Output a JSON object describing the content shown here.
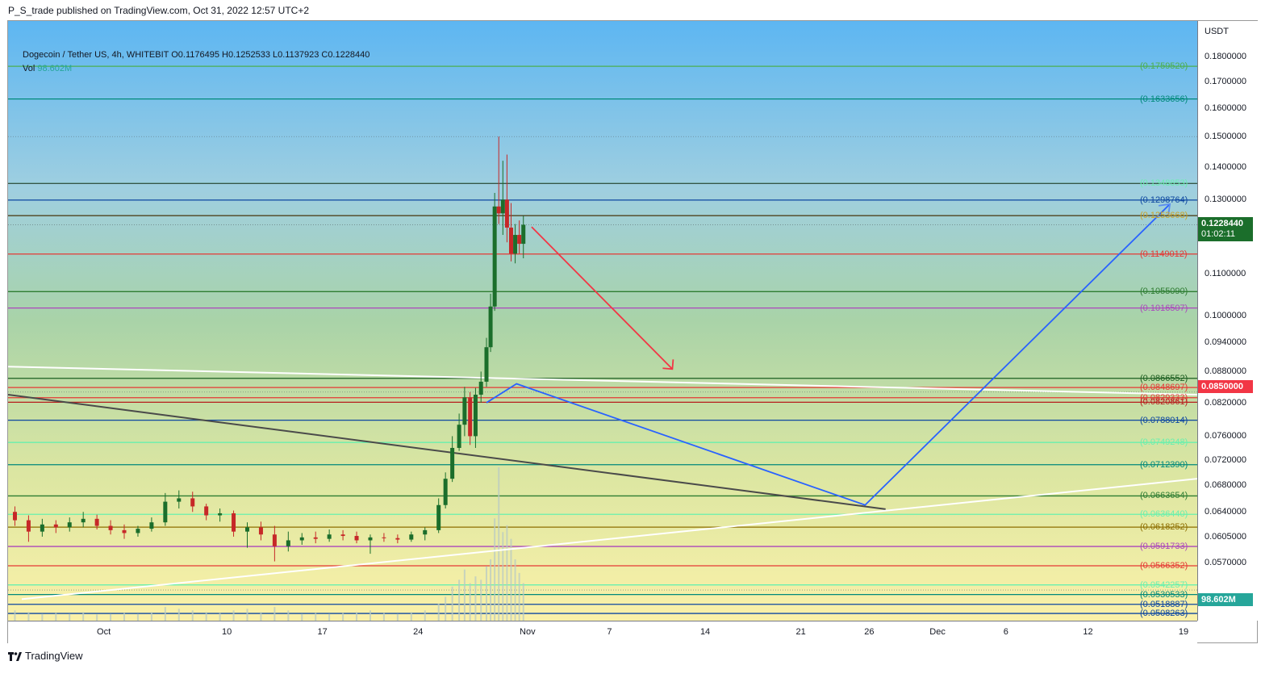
{
  "header": {
    "published": "P_S_trade published on TradingView.com, Oct 31, 2022 12:57 UTC+2"
  },
  "legend": {
    "symbol_line": "Dogecoin / Tether US, 4h, WHITEBIT  O0.1176495  H0.1252533  L0.1137923  C0.1228440",
    "vol_label": "Vol",
    "vol_value": "98.602M"
  },
  "footer": {
    "brand": "TradingView"
  },
  "axis": {
    "unit": "USDT"
  },
  "colors": {
    "up": "#1b6e2b",
    "down": "#c62828",
    "volume": "#b8c9c4",
    "blue_path": "#2962ff",
    "red_arrow": "#f23645"
  },
  "chart_data": {
    "type": "candlestick",
    "title": "Dogecoin / Tether US, 4h, WHITEBIT",
    "y_scale": "log",
    "ylim": [
      0.05,
      0.195
    ],
    "x_range_days": [
      -7,
      80
    ],
    "x_origin": "2022-10-01",
    "y_ticks": [
      "0.1800000",
      "0.1700000",
      "0.1600000",
      "0.1500000",
      "0.1400000",
      "0.1300000",
      "0.1100000",
      "0.1000000",
      "0.0940000",
      "0.0880000",
      "0.0820000",
      "0.0760000",
      "0.0720000",
      "0.0680000",
      "0.0640000",
      "0.0605000",
      "0.0570000"
    ],
    "x_ticks": [
      {
        "label": "Oct",
        "day": 0
      },
      {
        "label": "10",
        "day": 9
      },
      {
        "label": "17",
        "day": 16
      },
      {
        "label": "24",
        "day": 23
      },
      {
        "label": "Nov",
        "day": 31
      },
      {
        "label": "7",
        "day": 37
      },
      {
        "label": "14",
        "day": 44
      },
      {
        "label": "21",
        "day": 51
      },
      {
        "label": "26",
        "day": 56
      },
      {
        "label": "Dec",
        "day": 61
      },
      {
        "label": "6",
        "day": 66
      },
      {
        "label": "12",
        "day": 72
      },
      {
        "label": "19",
        "day": 79
      }
    ],
    "levels": [
      {
        "value": 0.175952,
        "label": "(0.1759520)",
        "color": "#4caf50"
      },
      {
        "value": 0.1633656,
        "label": "(0.1633656)",
        "color": "#00897b"
      },
      {
        "value": 0.1348853,
        "label": "(0.1348853)",
        "color": "#69f0ae"
      },
      {
        "value": 0.1298764,
        "label": "(0.1298764)",
        "color": "#0d47a1"
      },
      {
        "value": 0.1253668,
        "label": "(0.1253668)",
        "color": "#c9a227"
      },
      {
        "value": 0.1149012,
        "label": "(0.1149012)",
        "color": "#e53935"
      },
      {
        "value": 0.105509,
        "label": "(0.1055090)",
        "color": "#2e7d32"
      },
      {
        "value": 0.1016507,
        "label": "(0.1016507)",
        "color": "#ab47bc"
      },
      {
        "value": 0.0866552,
        "label": "(0.0866552)",
        "color": "#1b5e20"
      },
      {
        "value": 0.0848697,
        "label": "(0.0848697)",
        "color": "#e53935"
      },
      {
        "value": 0.0829333,
        "label": "(0.0829333)",
        "color": "#e53935"
      },
      {
        "value": 0.0820861,
        "label": "(0.0820861)",
        "color": "#b71c1c"
      },
      {
        "value": 0.0788014,
        "label": "(0.0788014)",
        "color": "#0d47a1"
      },
      {
        "value": 0.0749248,
        "label": "(0.0749248)",
        "color": "#69f0ae"
      },
      {
        "value": 0.071239,
        "label": "(0.0712390)",
        "color": "#00897b"
      },
      {
        "value": 0.0663654,
        "label": "(0.0663654)",
        "color": "#2e7d32"
      },
      {
        "value": 0.063644,
        "label": "(0.0636440)",
        "color": "#69f0ae"
      },
      {
        "value": 0.0618252,
        "label": "(0.0618252)",
        "color": "#8d6e00"
      },
      {
        "value": 0.0591733,
        "label": "(0.0591733)",
        "color": "#ab47bc"
      },
      {
        "value": 0.0566352,
        "label": "(0.0566352)",
        "color": "#e53935"
      },
      {
        "value": 0.0542257,
        "label": "(0.0542257)",
        "color": "#69f0ae"
      },
      {
        "value": 0.0530533,
        "label": "(0.0530533)",
        "color": "#00897b"
      },
      {
        "value": 0.0518887,
        "label": "(0.0518887)",
        "color": "#0d47a1"
      },
      {
        "value": 0.0508263,
        "label": "(0.0508263)",
        "color": "#0d47a1"
      }
    ],
    "last_price": {
      "value": 0.122844,
      "label": "0.1228440",
      "countdown": "01:02:11",
      "color": "#1b6e2b"
    },
    "alert_price": {
      "value": 0.085,
      "label": "0.0850000",
      "color": "#f23645"
    },
    "volume_badge": {
      "label": "98.602M",
      "color": "#26a69a"
    },
    "candles": [
      {
        "d": -6.5,
        "o": 0.064,
        "h": 0.0648,
        "l": 0.062,
        "c": 0.0628
      },
      {
        "d": -5.5,
        "o": 0.0628,
        "h": 0.0635,
        "l": 0.0598,
        "c": 0.0612
      },
      {
        "d": -4.5,
        "o": 0.0612,
        "h": 0.063,
        "l": 0.0605,
        "c": 0.0622
      },
      {
        "d": -3.5,
        "o": 0.0622,
        "h": 0.0628,
        "l": 0.061,
        "c": 0.0618
      },
      {
        "d": -2.5,
        "o": 0.0618,
        "h": 0.0632,
        "l": 0.0612,
        "c": 0.0625
      },
      {
        "d": -1.5,
        "o": 0.0625,
        "h": 0.064,
        "l": 0.0618,
        "c": 0.063
      },
      {
        "d": -0.5,
        "o": 0.063,
        "h": 0.0636,
        "l": 0.0615,
        "c": 0.062
      },
      {
        "d": 0.5,
        "o": 0.062,
        "h": 0.0628,
        "l": 0.0608,
        "c": 0.0614
      },
      {
        "d": 1.5,
        "o": 0.0614,
        "h": 0.0622,
        "l": 0.0602,
        "c": 0.061
      },
      {
        "d": 2.5,
        "o": 0.061,
        "h": 0.062,
        "l": 0.0605,
        "c": 0.0616
      },
      {
        "d": 3.5,
        "o": 0.0616,
        "h": 0.0632,
        "l": 0.0612,
        "c": 0.0625
      },
      {
        "d": 4.5,
        "o": 0.0625,
        "h": 0.0668,
        "l": 0.062,
        "c": 0.0655
      },
      {
        "d": 5.5,
        "o": 0.0655,
        "h": 0.0672,
        "l": 0.0645,
        "c": 0.066
      },
      {
        "d": 6.5,
        "o": 0.066,
        "h": 0.067,
        "l": 0.064,
        "c": 0.0648
      },
      {
        "d": 7.5,
        "o": 0.0648,
        "h": 0.0652,
        "l": 0.0628,
        "c": 0.0635
      },
      {
        "d": 8.5,
        "o": 0.0635,
        "h": 0.0645,
        "l": 0.0626,
        "c": 0.0638
      },
      {
        "d": 9.5,
        "o": 0.0638,
        "h": 0.0642,
        "l": 0.0605,
        "c": 0.0612
      },
      {
        "d": 10.5,
        "o": 0.0612,
        "h": 0.0625,
        "l": 0.059,
        "c": 0.0618
      },
      {
        "d": 11.5,
        "o": 0.0618,
        "h": 0.0626,
        "l": 0.06,
        "c": 0.0608
      },
      {
        "d": 12.5,
        "o": 0.0608,
        "h": 0.062,
        "l": 0.0572,
        "c": 0.0592
      },
      {
        "d": 13.5,
        "o": 0.0592,
        "h": 0.0612,
        "l": 0.0585,
        "c": 0.06
      },
      {
        "d": 14.5,
        "o": 0.06,
        "h": 0.061,
        "l": 0.0594,
        "c": 0.0604
      },
      {
        "d": 15.5,
        "o": 0.0604,
        "h": 0.0612,
        "l": 0.0596,
        "c": 0.0602
      },
      {
        "d": 16.5,
        "o": 0.0602,
        "h": 0.0615,
        "l": 0.0598,
        "c": 0.0608
      },
      {
        "d": 17.5,
        "o": 0.0608,
        "h": 0.0614,
        "l": 0.06,
        "c": 0.0606
      },
      {
        "d": 18.5,
        "o": 0.0606,
        "h": 0.0612,
        "l": 0.0596,
        "c": 0.06
      },
      {
        "d": 19.5,
        "o": 0.06,
        "h": 0.0608,
        "l": 0.0582,
        "c": 0.0604
      },
      {
        "d": 20.5,
        "o": 0.0604,
        "h": 0.061,
        "l": 0.0598,
        "c": 0.0603
      },
      {
        "d": 21.5,
        "o": 0.0603,
        "h": 0.0608,
        "l": 0.0596,
        "c": 0.0601
      },
      {
        "d": 22.5,
        "o": 0.0601,
        "h": 0.0612,
        "l": 0.0598,
        "c": 0.0608
      },
      {
        "d": 23.5,
        "o": 0.0608,
        "h": 0.0618,
        "l": 0.06,
        "c": 0.0614
      },
      {
        "d": 24.5,
        "o": 0.0614,
        "h": 0.066,
        "l": 0.061,
        "c": 0.065
      },
      {
        "d": 25.0,
        "o": 0.065,
        "h": 0.07,
        "l": 0.0645,
        "c": 0.069
      },
      {
        "d": 25.5,
        "o": 0.069,
        "h": 0.076,
        "l": 0.0685,
        "c": 0.074
      },
      {
        "d": 26.0,
        "o": 0.074,
        "h": 0.08,
        "l": 0.0735,
        "c": 0.078
      },
      {
        "d": 26.4,
        "o": 0.078,
        "h": 0.085,
        "l": 0.076,
        "c": 0.083
      },
      {
        "d": 26.8,
        "o": 0.083,
        "h": 0.084,
        "l": 0.0745,
        "c": 0.076
      },
      {
        "d": 27.2,
        "o": 0.076,
        "h": 0.0848,
        "l": 0.074,
        "c": 0.0835
      },
      {
        "d": 27.6,
        "o": 0.0835,
        "h": 0.088,
        "l": 0.082,
        "c": 0.086
      },
      {
        "d": 28.0,
        "o": 0.086,
        "h": 0.095,
        "l": 0.085,
        "c": 0.093
      },
      {
        "d": 28.3,
        "o": 0.093,
        "h": 0.105,
        "l": 0.092,
        "c": 0.102
      },
      {
        "d": 28.6,
        "o": 0.102,
        "h": 0.132,
        "l": 0.101,
        "c": 0.128
      },
      {
        "d": 28.9,
        "o": 0.128,
        "h": 0.15,
        "l": 0.123,
        "c": 0.126
      },
      {
        "d": 29.2,
        "o": 0.126,
        "h": 0.142,
        "l": 0.12,
        "c": 0.13
      },
      {
        "d": 29.5,
        "o": 0.13,
        "h": 0.144,
        "l": 0.118,
        "c": 0.122
      },
      {
        "d": 29.8,
        "o": 0.122,
        "h": 0.129,
        "l": 0.113,
        "c": 0.115
      },
      {
        "d": 30.1,
        "o": 0.115,
        "h": 0.123,
        "l": 0.1125,
        "c": 0.12
      },
      {
        "d": 30.4,
        "o": 0.12,
        "h": 0.124,
        "l": 0.115,
        "c": 0.1176
      },
      {
        "d": 30.7,
        "o": 0.1176,
        "h": 0.1253,
        "l": 0.1138,
        "c": 0.1228
      }
    ],
    "volumes": [
      0.3,
      0.25,
      0.2,
      0.22,
      0.2,
      0.25,
      0.18,
      0.2,
      0.22,
      0.2,
      0.25,
      0.4,
      0.35,
      0.3,
      0.25,
      0.22,
      0.3,
      0.35,
      0.25,
      0.4,
      0.3,
      0.2,
      0.22,
      0.2,
      0.22,
      0.25,
      0.3,
      0.22,
      0.2,
      0.25,
      0.3,
      0.5,
      0.7,
      1.0,
      1.2,
      1.5,
      1.1,
      1.3,
      1.2,
      1.6,
      1.8,
      3.0,
      4.5,
      2.6,
      2.8,
      2.4,
      1.8,
      1.4,
      1.1
    ],
    "drawings": {
      "red_arrow": [
        {
          "d": 31.3,
          "p": 0.1222
        },
        {
          "d": 41.6,
          "p": 0.0885
        }
      ],
      "blue_path": [
        {
          "d": 28.0,
          "p": 0.082
        },
        {
          "d": 30.2,
          "p": 0.0856
        },
        {
          "d": 55.7,
          "p": 0.065
        },
        {
          "d": 78.0,
          "p": 0.1287
        }
      ],
      "white_upper_trend": [
        {
          "d": -7,
          "p": 0.089
        },
        {
          "d": 80,
          "p": 0.0835
        }
      ],
      "black_down_trend": [
        {
          "d": -7,
          "p": 0.0835
        },
        {
          "d": 57.2,
          "p": 0.0644
        }
      ],
      "white_rising_trend": [
        {
          "d": -6,
          "p": 0.0525
        },
        {
          "d": 80,
          "p": 0.069
        }
      ],
      "dotted_levels": [
        0.15,
        0.1228,
        0.084,
        0.0536
      ]
    }
  }
}
